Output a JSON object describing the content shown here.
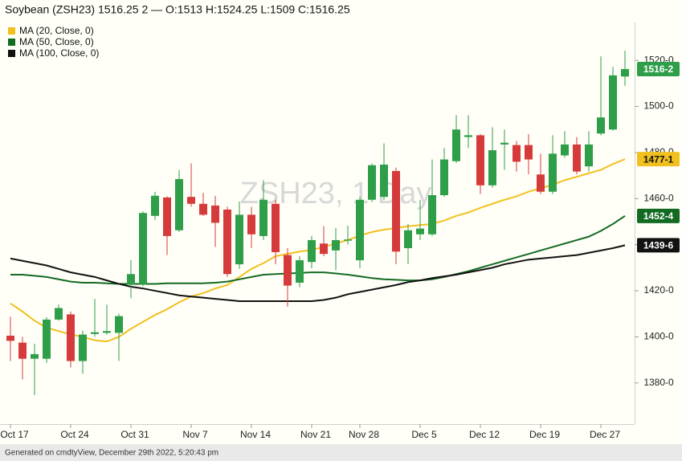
{
  "chart_data": {
    "type": "candlestick",
    "title": "Soybean (ZSH23) 1516.25 2 — O:1513 H:1524.25 L:1509 C:1516.25",
    "watermark": "ZSH23, 1 Day",
    "footer": "Generated on cmdtyView, December 29th 2022, 5:20:43 pm",
    "categories": [
      "Oct 17",
      null,
      null,
      null,
      null,
      "Oct 24",
      null,
      null,
      null,
      null,
      "Oct 31",
      null,
      null,
      null,
      null,
      "Nov 7",
      null,
      null,
      null,
      null,
      "Nov 14",
      null,
      null,
      null,
      null,
      "Nov 21",
      null,
      null,
      null,
      "Nov 28",
      null,
      null,
      null,
      null,
      "Dec 5",
      null,
      null,
      null,
      null,
      "Dec 12",
      null,
      null,
      null,
      null,
      "Dec 19",
      null,
      null,
      null,
      null,
      "Dec 27",
      null,
      null
    ],
    "candles": {
      "up_color": "#2e9e48",
      "down_color": "#d63b3b",
      "open": [
        1400.5,
        1397.5,
        1390.5,
        1390.5,
        1407.5,
        1409.75,
        1389.5,
        1401.25,
        1401.75,
        1401.75,
        1422.75,
        1422.75,
        1452.5,
        1460.5,
        1446.25,
        1460.75,
        1457.75,
        1457,
        1455.25,
        1431.5,
        1453,
        1443.75,
        1457.75,
        1435.5,
        1423.5,
        1432.5,
        1440.5,
        1437.5,
        1441.75,
        1433.25,
        1459.5,
        1460.75,
        1472,
        1438.5,
        1444.5,
        1444.5,
        1461.5,
        1476.25,
        1486.75,
        1487.5,
        1465.75,
        1483.5,
        1483.25,
        1483.25,
        1470.5,
        1463,
        1478.75,
        1483.5,
        1474,
        1488.25,
        1490,
        1513
      ],
      "high": [
        1408.75,
        1400,
        1397,
        1408.5,
        1414,
        1411,
        1402.75,
        1416.5,
        1414,
        1410,
        1433.25,
        1454.5,
        1463,
        1461,
        1472.5,
        1475.25,
        1462.5,
        1461.25,
        1456.5,
        1458.75,
        1456.5,
        1468,
        1459.5,
        1438.5,
        1435,
        1443.75,
        1448,
        1447.25,
        1448.25,
        1460.75,
        1475.25,
        1484,
        1473.5,
        1449,
        1459.5,
        1477,
        1482,
        1496.25,
        1496.25,
        1488,
        1491,
        1490,
        1485,
        1488,
        1479.5,
        1487.5,
        1489.25,
        1486.75,
        1489.25,
        1521.75,
        1517.25,
        1524.25
      ],
      "low": [
        1389.5,
        1381.5,
        1374.75,
        1388.75,
        1407,
        1386.75,
        1384,
        1400,
        1401,
        1389.5,
        1416.75,
        1422,
        1450.75,
        1435.5,
        1445.5,
        1456.5,
        1452.5,
        1439,
        1426,
        1429.5,
        1438.5,
        1442,
        1431.5,
        1413,
        1421.5,
        1429.75,
        1435,
        1429,
        1440,
        1429.75,
        1458.5,
        1459.5,
        1431.5,
        1431.5,
        1442,
        1443.75,
        1460.75,
        1475.5,
        1482,
        1462,
        1464.75,
        1472.5,
        1471.75,
        1470.5,
        1462,
        1462,
        1477.75,
        1470.5,
        1471.75,
        1487.5,
        1489.5,
        1509
      ],
      "close": [
        1398.25,
        1390.5,
        1392.5,
        1407.5,
        1412.5,
        1389.5,
        1401,
        1402,
        1402.5,
        1409,
        1427.25,
        1453.75,
        1461.25,
        1443.75,
        1468.5,
        1457.75,
        1453,
        1449.5,
        1427.25,
        1453,
        1444.5,
        1459.5,
        1436.75,
        1422.25,
        1433.25,
        1442,
        1436,
        1442,
        1442.25,
        1459.5,
        1474.5,
        1474.75,
        1437,
        1446.25,
        1447,
        1461.5,
        1477,
        1490,
        1487.5,
        1465.75,
        1481,
        1484.25,
        1476,
        1477,
        1463,
        1479.5,
        1483.5,
        1471.75,
        1483.5,
        1495.25,
        1513.5,
        1516.25
      ]
    },
    "series": [
      {
        "name": "MA (20, Close, 0)",
        "color": "#f2c01e",
        "values": [
          1414.5,
          1411,
          1407,
          1404,
          1402.5,
          1401,
          1400,
          1398.5,
          1398,
          1400,
          1403.5,
          1406.5,
          1409.5,
          1412,
          1415,
          1417.5,
          1419,
          1421,
          1422.5,
          1426,
          1429.5,
          1432,
          1435,
          1436,
          1437,
          1437.75,
          1439,
          1440.5,
          1442,
          1444,
          1445.5,
          1446.5,
          1447.25,
          1448,
          1448.5,
          1449,
          1450.5,
          1452.5,
          1454,
          1456,
          1457.75,
          1459.5,
          1461,
          1463,
          1464.5,
          1466,
          1468,
          1469.5,
          1471,
          1472.5,
          1475,
          1477.125
        ]
      },
      {
        "name": "MA (50, Close, 0)",
        "color": "#136b22",
        "values": [
          1427,
          1427,
          1426.5,
          1426,
          1425,
          1424,
          1423.5,
          1423.5,
          1423.25,
          1423,
          1423,
          1423,
          1423,
          1423.25,
          1423.25,
          1423.25,
          1423.25,
          1423.5,
          1424,
          1425,
          1426,
          1427,
          1427.25,
          1427.5,
          1427.75,
          1428,
          1428,
          1427.5,
          1427,
          1426.25,
          1425.5,
          1425,
          1424.75,
          1424.5,
          1424.5,
          1425,
          1426,
          1427.25,
          1428.5,
          1430,
          1431.5,
          1433,
          1434.5,
          1436,
          1437.5,
          1439,
          1440.5,
          1442,
          1443.5,
          1446,
          1449,
          1452.5
        ]
      },
      {
        "name": "MA (100, Close, 0)",
        "color": "#111111",
        "values": [
          1434,
          1433,
          1432,
          1431,
          1429.5,
          1428,
          1427,
          1426,
          1424.5,
          1423,
          1421.75,
          1421,
          1420,
          1419,
          1418,
          1417.5,
          1417,
          1416.5,
          1416,
          1415.5,
          1415.5,
          1415.5,
          1415.5,
          1415.5,
          1415.5,
          1415.5,
          1416,
          1417,
          1418.5,
          1419.5,
          1420.5,
          1421.5,
          1422.5,
          1423.75,
          1424.5,
          1425.5,
          1426.25,
          1427,
          1428,
          1429,
          1430,
          1431.5,
          1432.5,
          1433.5,
          1434,
          1434.5,
          1435,
          1435.5,
          1436.5,
          1437.5,
          1438.5,
          1439.75
        ]
      }
    ],
    "price_tags": [
      {
        "value": 1516.25,
        "label": "1516-2",
        "color": "#2e9e48",
        "text_color": "#ffffff"
      },
      {
        "value": 1477.125,
        "label": "1477-1",
        "color": "#f2c01e",
        "text_color": "#111111"
      },
      {
        "value": 1452.5,
        "label": "1452-4",
        "color": "#136b22",
        "text_color": "#ffffff"
      },
      {
        "value": 1439.75,
        "label": "1439-6",
        "color": "#111111",
        "text_color": "#ffffff"
      }
    ],
    "ylim": [
      1362.15,
      1536.45
    ],
    "yticks": [
      {
        "value": 1380,
        "label": "1380-0"
      },
      {
        "value": 1400,
        "label": "1400-0"
      },
      {
        "value": 1420,
        "label": "1420-0"
      },
      {
        "value": 1440,
        "label": "1440-0"
      },
      {
        "value": 1460,
        "label": "1460-0"
      },
      {
        "value": 1480,
        "label": "1480-0"
      },
      {
        "value": 1500,
        "label": "1500-0"
      },
      {
        "value": 1520,
        "label": "1520-0"
      }
    ],
    "legend": "top-left"
  }
}
